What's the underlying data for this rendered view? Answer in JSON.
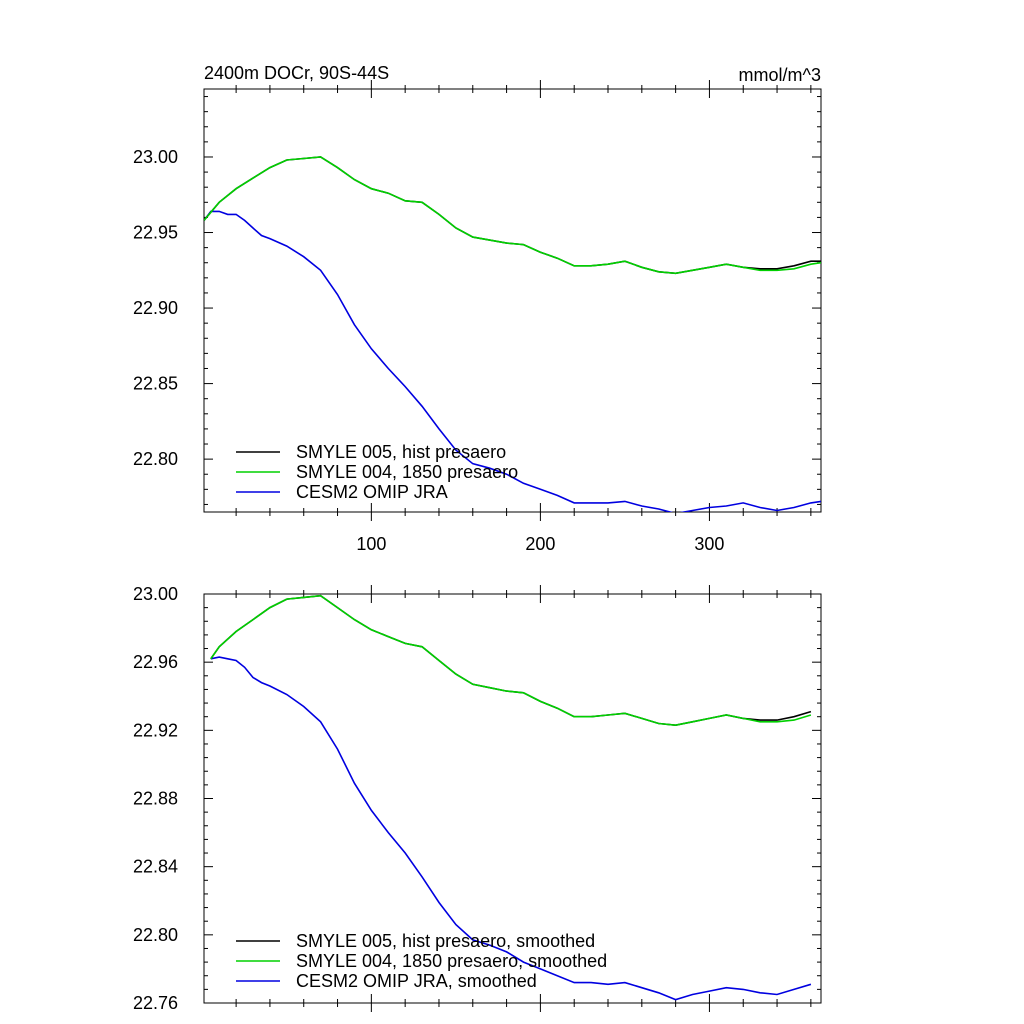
{
  "chart_data": [
    {
      "type": "line",
      "title": "2400m DOCr, 90S-44S",
      "units": "mmol/m^3",
      "xlim": [
        1,
        366
      ],
      "ylim": [
        22.765,
        23.045
      ],
      "x_ticks": [
        100,
        200,
        300
      ],
      "x_tick_labels": [
        "100",
        "200",
        "300"
      ],
      "y_ticks": [
        22.8,
        22.85,
        22.9,
        22.95,
        23.0
      ],
      "y_tick_labels": [
        "22.80",
        "22.85",
        "22.90",
        "22.95",
        "23.00"
      ],
      "legend_position": "bottom-left",
      "series": [
        {
          "name": "SMYLE 005, hist presaero",
          "color": "#000000",
          "x": [
            1,
            10,
            20,
            30,
            40,
            50,
            60,
            70,
            80,
            90,
            100,
            110,
            120,
            130,
            140,
            150,
            160,
            170,
            180,
            190,
            200,
            210,
            220,
            230,
            240,
            250,
            260,
            270,
            280,
            290,
            300,
            310,
            320,
            330,
            340,
            350,
            360,
            366
          ],
          "y": [
            22.958,
            22.97,
            22.979,
            22.986,
            22.993,
            22.998,
            22.999,
            23.0,
            22.993,
            22.985,
            22.979,
            22.976,
            22.971,
            22.97,
            22.962,
            22.953,
            22.947,
            22.945,
            22.943,
            22.942,
            22.937,
            22.933,
            22.928,
            22.928,
            22.929,
            22.931,
            22.927,
            22.924,
            22.923,
            22.925,
            22.927,
            22.929,
            22.927,
            22.926,
            22.926,
            22.928,
            22.931,
            22.931
          ]
        },
        {
          "name": "SMYLE 004, 1850 presaero",
          "color": "#00d000",
          "x": [
            1,
            10,
            20,
            30,
            40,
            50,
            60,
            70,
            80,
            90,
            100,
            110,
            120,
            130,
            140,
            150,
            160,
            170,
            180,
            190,
            200,
            210,
            220,
            230,
            240,
            250,
            260,
            270,
            280,
            290,
            300,
            310,
            320,
            330,
            340,
            350,
            360,
            366
          ],
          "y": [
            22.958,
            22.97,
            22.979,
            22.986,
            22.993,
            22.998,
            22.999,
            23.0,
            22.993,
            22.985,
            22.979,
            22.976,
            22.971,
            22.97,
            22.962,
            22.953,
            22.947,
            22.945,
            22.943,
            22.942,
            22.937,
            22.933,
            22.928,
            22.928,
            22.929,
            22.931,
            22.927,
            22.924,
            22.923,
            22.925,
            22.927,
            22.929,
            22.927,
            22.925,
            22.925,
            22.926,
            22.929,
            22.93
          ]
        },
        {
          "name": "CESM2 OMIP JRA",
          "color": "#0000e0",
          "x": [
            1,
            5,
            10,
            15,
            20,
            25,
            30,
            35,
            40,
            50,
            60,
            70,
            80,
            90,
            100,
            110,
            120,
            130,
            140,
            150,
            160,
            170,
            180,
            190,
            200,
            210,
            220,
            230,
            240,
            250,
            260,
            270,
            280,
            290,
            300,
            310,
            320,
            330,
            340,
            350,
            360,
            366
          ],
          "y": [
            22.958,
            22.964,
            22.964,
            22.962,
            22.962,
            22.958,
            22.953,
            22.948,
            22.946,
            22.941,
            22.934,
            22.925,
            22.909,
            22.889,
            22.873,
            22.86,
            22.848,
            22.835,
            22.82,
            22.806,
            22.797,
            22.794,
            22.79,
            22.784,
            22.78,
            22.776,
            22.771,
            22.771,
            22.771,
            22.772,
            22.769,
            22.767,
            22.764,
            22.766,
            22.768,
            22.769,
            22.771,
            22.768,
            22.766,
            22.768,
            22.771,
            22.772
          ]
        }
      ]
    },
    {
      "type": "line",
      "xlim": [
        1,
        366
      ],
      "ylim": [
        22.76,
        23.0
      ],
      "x_ticks": [
        100,
        200,
        300
      ],
      "y_ticks": [
        22.76,
        22.8,
        22.84,
        22.88,
        22.92,
        22.96,
        23.0
      ],
      "y_tick_labels": [
        "22.76",
        "22.80",
        "22.84",
        "22.88",
        "22.92",
        "22.96",
        "23.00"
      ],
      "legend_position": "bottom-left",
      "series": [
        {
          "name": "SMYLE 005, hist presaero, smoothed",
          "color": "#000000",
          "x": [
            5,
            10,
            20,
            30,
            40,
            50,
            60,
            70,
            80,
            90,
            100,
            110,
            120,
            130,
            140,
            150,
            160,
            170,
            180,
            190,
            200,
            210,
            220,
            230,
            240,
            250,
            260,
            270,
            280,
            290,
            300,
            310,
            320,
            330,
            340,
            350,
            360
          ],
          "y": [
            22.962,
            22.969,
            22.978,
            22.985,
            22.992,
            22.997,
            22.998,
            22.999,
            22.992,
            22.985,
            22.979,
            22.975,
            22.971,
            22.969,
            22.961,
            22.953,
            22.947,
            22.945,
            22.943,
            22.942,
            22.937,
            22.933,
            22.928,
            22.928,
            22.929,
            22.93,
            22.927,
            22.924,
            22.923,
            22.925,
            22.927,
            22.929,
            22.927,
            22.926,
            22.926,
            22.928,
            22.931
          ]
        },
        {
          "name": "SMYLE 004, 1850 presaero, smoothed",
          "color": "#00d000",
          "x": [
            5,
            10,
            20,
            30,
            40,
            50,
            60,
            70,
            80,
            90,
            100,
            110,
            120,
            130,
            140,
            150,
            160,
            170,
            180,
            190,
            200,
            210,
            220,
            230,
            240,
            250,
            260,
            270,
            280,
            290,
            300,
            310,
            320,
            330,
            340,
            350,
            360
          ],
          "y": [
            22.962,
            22.969,
            22.978,
            22.985,
            22.992,
            22.997,
            22.998,
            22.999,
            22.992,
            22.985,
            22.979,
            22.975,
            22.971,
            22.969,
            22.961,
            22.953,
            22.947,
            22.945,
            22.943,
            22.942,
            22.937,
            22.933,
            22.928,
            22.928,
            22.929,
            22.93,
            22.927,
            22.924,
            22.923,
            22.925,
            22.927,
            22.929,
            22.927,
            22.925,
            22.925,
            22.926,
            22.929
          ]
        },
        {
          "name": "CESM2 OMIP JRA, smoothed",
          "color": "#0000e0",
          "x": [
            5,
            10,
            15,
            20,
            25,
            30,
            35,
            40,
            50,
            60,
            70,
            80,
            90,
            100,
            110,
            120,
            130,
            140,
            150,
            160,
            170,
            180,
            190,
            200,
            210,
            220,
            230,
            240,
            250,
            260,
            270,
            280,
            290,
            300,
            310,
            320,
            330,
            340,
            350,
            360
          ],
          "y": [
            22.962,
            22.963,
            22.962,
            22.961,
            22.957,
            22.951,
            22.948,
            22.946,
            22.941,
            22.934,
            22.925,
            22.909,
            22.889,
            22.873,
            22.86,
            22.848,
            22.834,
            22.819,
            22.806,
            22.797,
            22.794,
            22.79,
            22.784,
            22.78,
            22.776,
            22.772,
            22.772,
            22.771,
            22.772,
            22.769,
            22.766,
            22.762,
            22.765,
            22.767,
            22.769,
            22.768,
            22.766,
            22.765,
            22.768,
            22.771
          ]
        }
      ]
    }
  ]
}
